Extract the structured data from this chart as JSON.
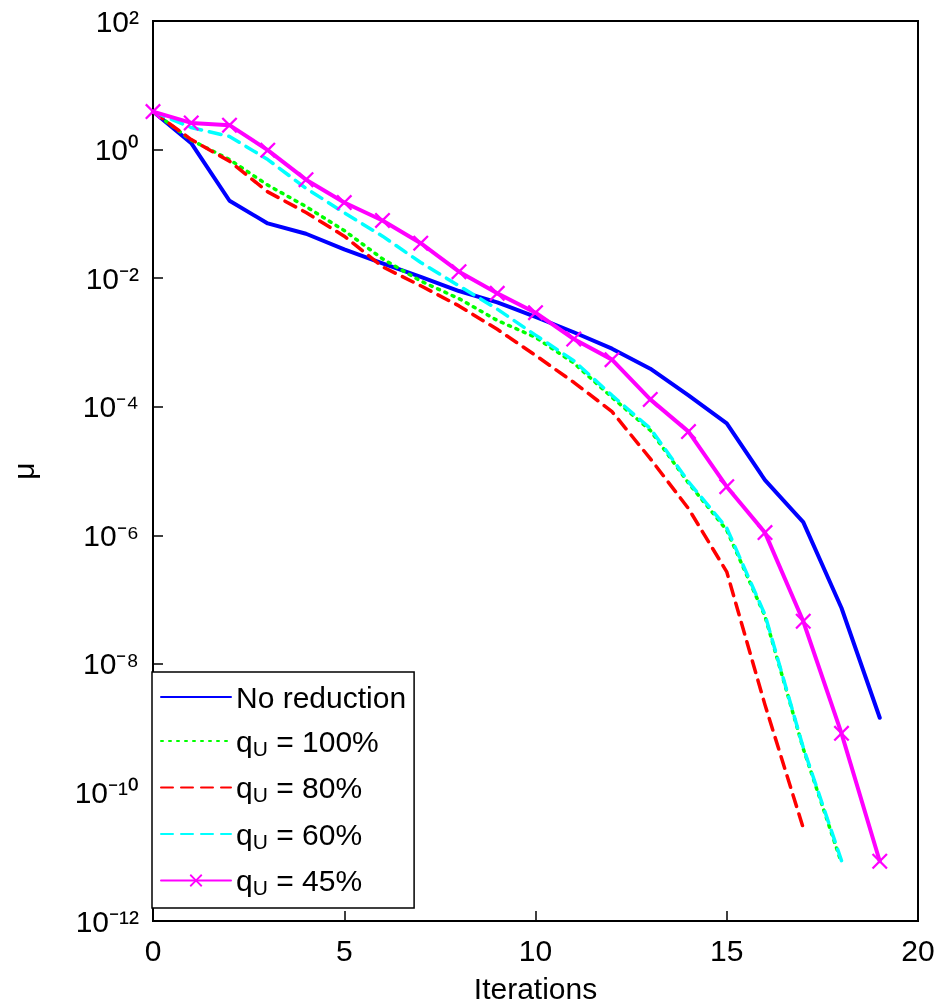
{
  "chart_data": {
    "type": "line",
    "xlabel": "Iterations",
    "ylabel": "μ",
    "x": [
      0,
      1,
      2,
      3,
      4,
      5,
      6,
      7,
      8,
      9,
      10,
      11,
      12,
      13,
      14,
      15,
      16,
      17,
      18,
      19
    ],
    "xlim": [
      0,
      20
    ],
    "xticks": [
      0,
      5,
      10,
      15,
      20
    ],
    "log": "y",
    "ylim": [
      1e-12,
      100
    ],
    "yticks": [
      {
        "value": 1e-12,
        "label": "10⁻¹²"
      },
      {
        "value": 1e-10,
        "label": "10⁻¹⁰"
      },
      {
        "value": 1e-08,
        "label": "10⁻⁸"
      },
      {
        "value": 1e-06,
        "label": "10⁻⁶"
      },
      {
        "value": 0.0001,
        "label": "10⁻⁴"
      },
      {
        "value": 0.01,
        "label": "10⁻²"
      },
      {
        "value": 1,
        "label": "10⁰"
      },
      {
        "value": 100,
        "label": "10²"
      }
    ],
    "grid": false,
    "legend": "bottom left",
    "series": [
      {
        "name": "No reduction",
        "color": "#0000ff",
        "line_style": "solid",
        "marker": "none",
        "values": [
          3.9,
          1.26,
          0.16,
          0.071,
          0.049,
          0.028,
          0.017,
          0.0105,
          0.0063,
          0.0042,
          0.0025,
          0.00144,
          0.0008,
          0.00039,
          0.00015,
          5.5e-05,
          7.2e-06,
          1.6e-06,
          7.4e-08,
          1.45e-09
        ]
      },
      {
        "name": "q$_{U}$ = 100%",
        "color": "#00ff00",
        "line_style": "dotted",
        "marker": "none",
        "values": [
          3.9,
          1.4,
          0.7,
          0.28,
          0.13,
          0.055,
          0.02,
          0.009,
          0.0048,
          0.0022,
          0.0012,
          0.00048,
          0.00014,
          4.3e-05,
          6.5e-06,
          1.2e-06,
          5.5e-08,
          4.8e-10,
          8e-12,
          null
        ]
      },
      {
        "name": "q$_{U}$ = 80%",
        "color": "#ff0000",
        "line_style": "dashed",
        "marker": "none",
        "values": [
          3.9,
          1.43,
          0.66,
          0.22,
          0.105,
          0.045,
          0.015,
          0.0076,
          0.0037,
          0.0016,
          0.00063,
          0.00024,
          8.4e-05,
          1.56e-05,
          2.6e-06,
          2.7e-07,
          2.3e-09,
          2.8e-11,
          null,
          null
        ]
      },
      {
        "name": "q$_{U}$ = 60%",
        "color": "#00ffff",
        "line_style": "dashed",
        "marker": "none",
        "values": [
          3.9,
          2.2,
          1.6,
          0.7,
          0.25,
          0.104,
          0.045,
          0.0175,
          0.0076,
          0.0033,
          0.0013,
          0.00052,
          0.00015,
          4.6e-05,
          6.8e-06,
          1.3e-06,
          5.8e-08,
          5e-10,
          8.7e-12,
          null
        ]
      },
      {
        "name": "q$_{U}$ = 45%",
        "color": "#ff00ff",
        "line_style": "solid",
        "marker": "cross",
        "values": [
          3.9,
          2.6,
          2.4,
          0.98,
          0.34,
          0.15,
          0.079,
          0.035,
          0.0126,
          0.0058,
          0.0029,
          0.00113,
          0.00054,
          0.00013,
          4.1e-05,
          5.7e-06,
          1.1e-06,
          4.6e-08,
          8.3e-10,
          8.5e-12
        ]
      }
    ]
  }
}
